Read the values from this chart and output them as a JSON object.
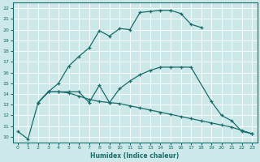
{
  "xlabel": "Humidex (Indice chaleur)",
  "background_color": "#cce8e8",
  "line_color": "#1a6b6b",
  "xlim": [
    -0.5,
    23.5
  ],
  "ylim": [
    9.5,
    22.5
  ],
  "yticks": [
    10,
    11,
    12,
    13,
    14,
    15,
    16,
    17,
    18,
    19,
    20,
    21,
    22
  ],
  "xticks": [
    0,
    1,
    2,
    3,
    4,
    5,
    6,
    7,
    8,
    9,
    10,
    11,
    12,
    13,
    14,
    15,
    16,
    17,
    18,
    19,
    20,
    21,
    22,
    23
  ],
  "lines": [
    {
      "x": [
        0,
        1,
        2,
        3,
        4,
        5,
        6,
        7,
        8,
        9,
        10,
        11,
        12,
        13,
        14,
        15,
        16,
        17,
        18
      ],
      "y": [
        10.5,
        9.8,
        13.2,
        14.2,
        15.0,
        16.6,
        17.5,
        18.3,
        19.9,
        19.4,
        20.1,
        20.0,
        21.6,
        21.7,
        21.8,
        21.8,
        21.5,
        20.5,
        20.2
      ]
    },
    {
      "x": [
        2,
        3,
        4,
        5,
        6,
        7,
        8,
        9,
        10,
        11,
        12,
        13,
        14,
        15,
        16,
        17,
        19,
        20,
        21,
        22,
        23
      ],
      "y": [
        13.2,
        14.2,
        14.2,
        14.2,
        14.2,
        13.2,
        14.8,
        13.2,
        14.5,
        15.2,
        15.8,
        16.2,
        16.5,
        16.5,
        16.5,
        16.5,
        13.3,
        12.0,
        11.5,
        10.5,
        10.3
      ]
    },
    {
      "x": [
        2,
        3,
        4,
        5,
        6,
        7,
        8,
        9,
        10,
        11,
        12,
        13,
        14,
        15,
        16,
        17,
        18,
        19,
        20,
        21,
        22,
        23
      ],
      "y": [
        13.2,
        14.2,
        14.2,
        14.1,
        13.8,
        13.5,
        13.3,
        13.2,
        13.1,
        12.9,
        12.7,
        12.5,
        12.3,
        12.1,
        11.9,
        11.7,
        11.5,
        11.3,
        11.1,
        10.9,
        10.6,
        10.3
      ]
    }
  ]
}
